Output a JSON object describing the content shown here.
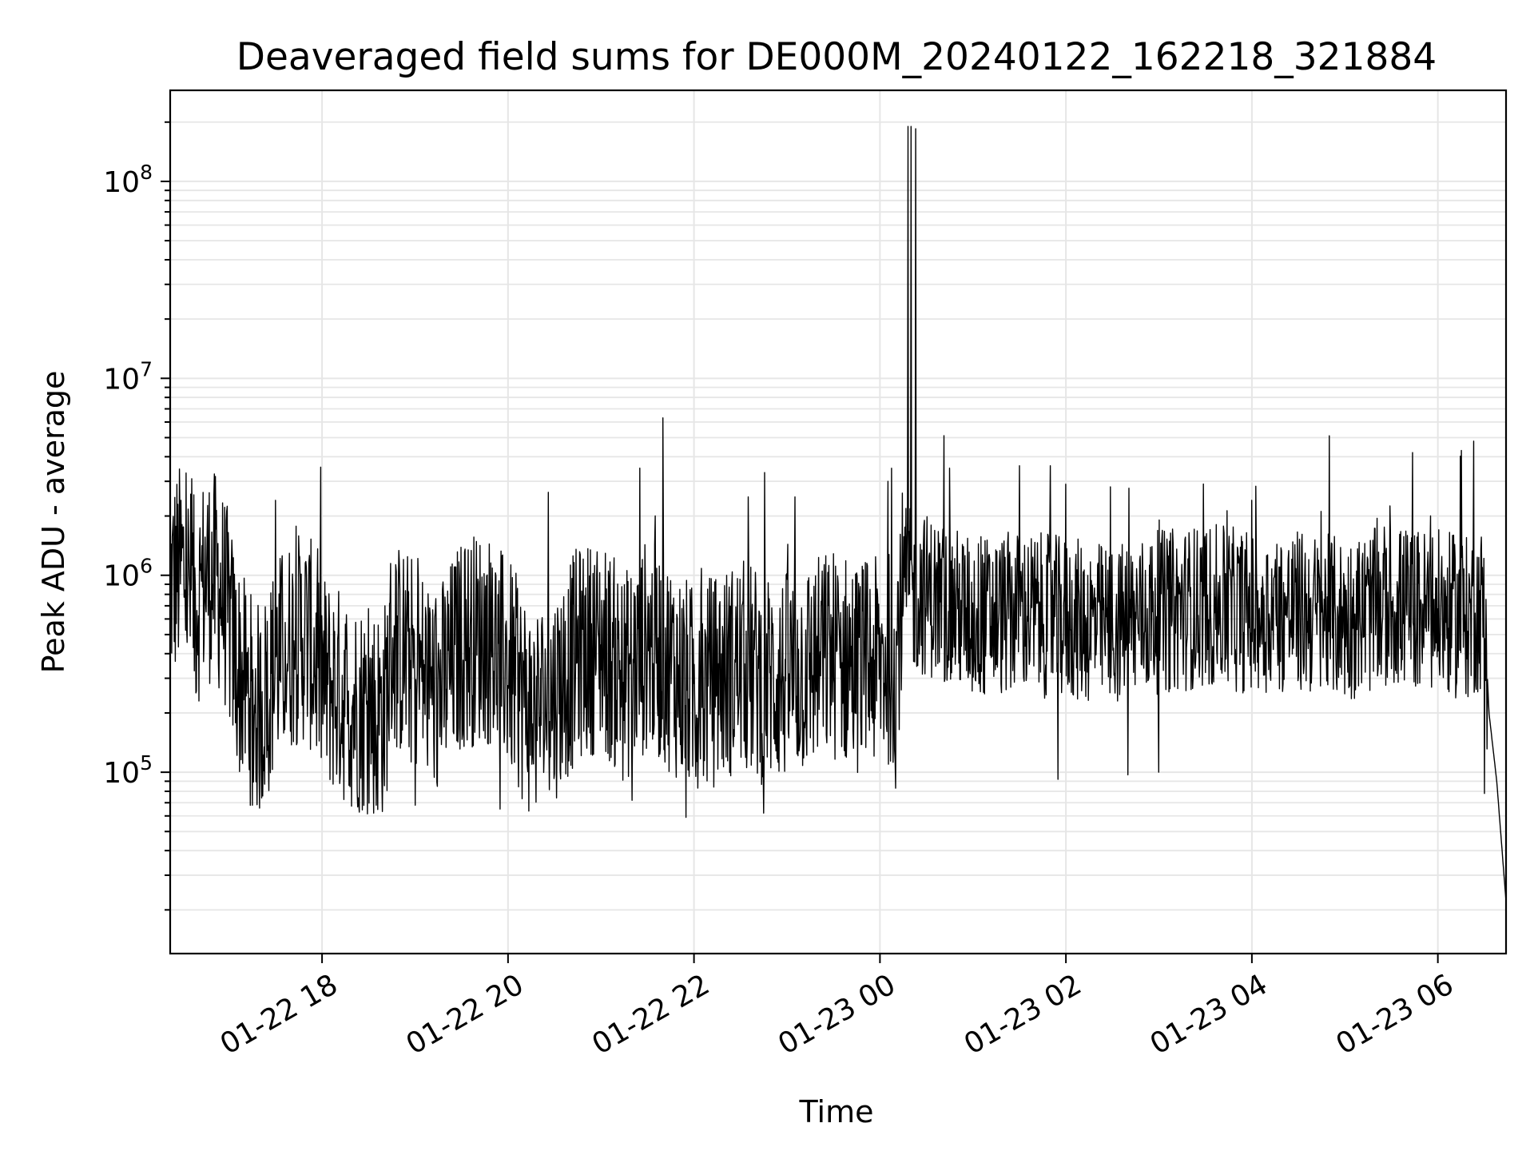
{
  "chart_data": {
    "type": "line",
    "title": "Deaveraged field sums for DE000M_20240122_162218_321884",
    "xlabel": "Time",
    "ylabel": "Peak ADU - average",
    "yscale": "log",
    "xlim": [
      "2024-01-22 16:22",
      "2024-01-23 06:44"
    ],
    "ylim": [
      12000,
      290000000
    ],
    "x_ticks": [
      "01-22 18",
      "01-22 20",
      "01-22 22",
      "01-23 00",
      "01-23 02",
      "01-23 04",
      "01-23 06"
    ],
    "y_ticks": [
      {
        "base": "10",
        "exp": "5",
        "value": 100000
      },
      {
        "base": "10",
        "exp": "6",
        "value": 1000000
      },
      {
        "base": "10",
        "exp": "7",
        "value": 10000000
      },
      {
        "base": "10",
        "exp": "8",
        "value": 100000000
      }
    ],
    "grid": true,
    "line_color": "#000000",
    "grid_color": "#e6e6e6",
    "series": [
      {
        "name": "",
        "points": [
          [
            "2024-01-22 16:22",
            900000
          ],
          [
            "2024-01-22 16:30",
            1100000
          ],
          [
            "2024-01-22 16:38",
            700000
          ],
          [
            "2024-01-22 16:45",
            1000000
          ],
          [
            "2024-01-22 16:52",
            950000
          ],
          [
            "2024-01-22 16:58",
            700000
          ],
          [
            "2024-01-22 17:05",
            350000
          ],
          [
            "2024-01-22 17:12",
            250000
          ],
          [
            "2024-01-22 17:20",
            200000
          ],
          [
            "2024-01-22 17:30",
            350000
          ],
          [
            "2024-01-22 17:40",
            450000
          ],
          [
            "2024-01-22 17:50",
            500000
          ],
          [
            "2024-01-22 18:00",
            300000
          ],
          [
            "2024-01-22 18:20",
            220000
          ],
          [
            "2024-01-22 18:40",
            200000
          ],
          [
            "2024-01-22 18:45",
            450000
          ],
          [
            "2024-01-22 19:00",
            350000
          ],
          [
            "2024-01-22 19:15",
            250000
          ],
          [
            "2024-01-22 19:30",
            450000
          ],
          [
            "2024-01-22 19:45",
            500000
          ],
          [
            "2024-01-22 20:00",
            350000
          ],
          [
            "2024-01-22 20:15",
            200000
          ],
          [
            "2024-01-22 20:30",
            250000
          ],
          [
            "2024-01-22 20:45",
            400000
          ],
          [
            "2024-01-22 21:00",
            450000
          ],
          [
            "2024-01-22 21:15",
            300000
          ],
          [
            "2024-01-22 21:30",
            450000
          ],
          [
            "2024-01-22 21:45",
            350000
          ],
          [
            "2024-01-22 22:00",
            250000
          ],
          [
            "2024-01-22 22:15",
            300000
          ],
          [
            "2024-01-22 22:30",
            350000
          ],
          [
            "2024-01-22 22:45",
            300000
          ],
          [
            "2024-01-22 23:00",
            300000
          ],
          [
            "2024-01-22 23:15",
            350000
          ],
          [
            "2024-01-22 23:30",
            400000
          ],
          [
            "2024-01-22 23:45",
            350000
          ],
          [
            "2024-01-23 00:00",
            350000
          ],
          [
            "2024-01-23 00:10",
            400000
          ],
          [
            "2024-01-23 00:15",
            850000
          ],
          [
            "2024-01-23 00:30",
            800000
          ],
          [
            "2024-01-23 00:45",
            700000
          ],
          [
            "2024-01-23 01:00",
            600000
          ],
          [
            "2024-01-23 01:30",
            650000
          ],
          [
            "2024-01-23 02:00",
            600000
          ],
          [
            "2024-01-23 02:30",
            550000
          ],
          [
            "2024-01-23 03:00",
            650000
          ],
          [
            "2024-01-23 03:30",
            700000
          ],
          [
            "2024-01-23 04:00",
            650000
          ],
          [
            "2024-01-23 04:30",
            650000
          ],
          [
            "2024-01-23 05:00",
            600000
          ],
          [
            "2024-01-23 05:30",
            700000
          ],
          [
            "2024-01-23 06:00",
            650000
          ],
          [
            "2024-01-23 06:20",
            600000
          ],
          [
            "2024-01-23 06:30",
            700000
          ],
          [
            "2024-01-23 06:33",
            200000
          ],
          [
            "2024-01-23 06:38",
            90000
          ],
          [
            "2024-01-23 06:44",
            22000
          ]
        ],
        "peaks": [
          [
            "2024-01-22 17:30",
            2400000
          ],
          [
            "2024-01-22 21:25",
            3500000
          ],
          [
            "2024-01-22 21:35",
            2000000
          ],
          [
            "2024-01-22 21:40",
            6300000
          ],
          [
            "2024-01-22 22:35",
            2500000
          ],
          [
            "2024-01-22 23:05",
            2500000
          ],
          [
            "2024-01-23 00:05",
            3000000
          ],
          [
            "2024-01-23 00:18",
            190000000
          ],
          [
            "2024-01-23 00:20",
            190000000
          ],
          [
            "2024-01-23 00:23",
            185000000
          ],
          [
            "2024-01-23 00:45",
            3500000
          ],
          [
            "2024-01-23 01:30",
            3600000
          ],
          [
            "2024-01-23 01:50",
            3600000
          ],
          [
            "2024-01-23 02:00",
            2900000
          ],
          [
            "2024-01-23 04:00",
            2400000
          ],
          [
            "2024-01-23 06:15",
            4300000
          ],
          [
            "2024-01-23 06:23",
            4800000
          ]
        ],
        "troughs": [
          [
            "2024-01-22 17:15",
            68000
          ],
          [
            "2024-01-22 18:35",
            68000
          ],
          [
            "2024-01-22 19:00",
            68000
          ],
          [
            "2024-01-22 19:55",
            65000
          ],
          [
            "2024-01-22 21:20",
            72000
          ],
          [
            "2024-01-22 21:55",
            59000
          ],
          [
            "2024-01-22 22:45",
            62000
          ],
          [
            "2024-01-23 00:10",
            83000
          ],
          [
            "2024-01-23 01:55",
            92000
          ],
          [
            "2024-01-23 02:40",
            97000
          ],
          [
            "2024-01-23 03:00",
            100000
          ],
          [
            "2024-01-23 06:30",
            78000
          ]
        ]
      }
    ]
  }
}
